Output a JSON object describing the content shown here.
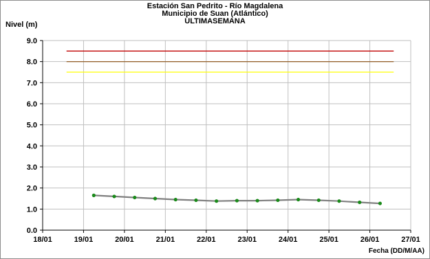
{
  "chart_data": {
    "type": "line",
    "title": "Estación San Pedrito - Río Magdalena",
    "subtitle": "Municipio de Suan (Atlántico)",
    "subtitle2": "ULTIMASEMANA",
    "ylabel": "Nivel (m)",
    "xlabel": "Fecha (DD/M/AA)",
    "ylim": [
      0,
      9
    ],
    "yticks": [
      "0.0",
      "1.0",
      "2.0",
      "3.0",
      "4.0",
      "5.0",
      "6.0",
      "7.0",
      "8.0",
      "9.0"
    ],
    "xticks": [
      "18/01",
      "19/01",
      "20/01",
      "21/01",
      "22/01",
      "23/01",
      "24/01",
      "25/01",
      "26/01",
      "27/01"
    ],
    "grid": true,
    "legend": "none",
    "thresholds": [
      {
        "value": 8.5,
        "color": "#c00000"
      },
      {
        "value": 8.0,
        "color": "#996633"
      },
      {
        "value": 7.5,
        "color": "#ffff00"
      }
    ],
    "threshold_x": [
      "18/01 14:00",
      "26/01 14:00"
    ],
    "series": [
      {
        "color": "#7f7f7f",
        "marker_color": "#1a8a1a",
        "points": [
          {
            "x": "19/01 06:00",
            "y": 1.65
          },
          {
            "x": "19/01 18:00",
            "y": 1.6
          },
          {
            "x": "20/01 06:00",
            "y": 1.55
          },
          {
            "x": "20/01 18:00",
            "y": 1.5
          },
          {
            "x": "21/01 06:00",
            "y": 1.45
          },
          {
            "x": "21/01 18:00",
            "y": 1.42
          },
          {
            "x": "22/01 06:00",
            "y": 1.38
          },
          {
            "x": "22/01 18:00",
            "y": 1.4
          },
          {
            "x": "23/01 06:00",
            "y": 1.4
          },
          {
            "x": "23/01 18:00",
            "y": 1.42
          },
          {
            "x": "24/01 06:00",
            "y": 1.45
          },
          {
            "x": "24/01 18:00",
            "y": 1.42
          },
          {
            "x": "25/01 06:00",
            "y": 1.38
          },
          {
            "x": "25/01 18:00",
            "y": 1.32
          },
          {
            "x": "26/01 06:00",
            "y": 1.27
          }
        ]
      }
    ]
  }
}
